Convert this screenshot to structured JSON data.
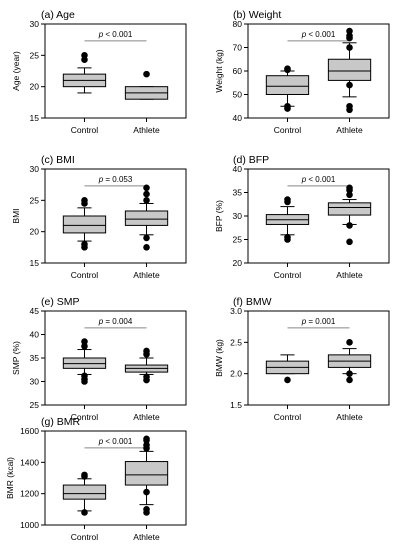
{
  "chart_data": [
    {
      "type": "box",
      "title": "(a) Age",
      "ylabel": "Age (year)",
      "categories": [
        "Control",
        "Athlete"
      ],
      "ylim": [
        15,
        30
      ],
      "yticks": [
        15,
        20,
        25,
        30
      ],
      "significance": {
        "p_symbol": "p",
        "text": " < 0.001"
      },
      "boxes": [
        {
          "q1": 20,
          "median": 21,
          "q3": 22,
          "whisker_low": 19,
          "whisker_high": 23,
          "outliers": [
            24.3,
            25
          ]
        },
        {
          "q1": 18,
          "median": 19,
          "q3": 20,
          "whisker_low": 18,
          "whisker_high": 20,
          "outliers": [
            22
          ]
        }
      ]
    },
    {
      "type": "box",
      "title": "(b) Weight",
      "ylabel": "Weight (kg)",
      "categories": [
        "Control",
        "Athlete"
      ],
      "ylim": [
        40,
        80
      ],
      "yticks": [
        40,
        50,
        60,
        70,
        80
      ],
      "significance": {
        "p_symbol": "p",
        "text": " < 0.001"
      },
      "boxes": [
        {
          "q1": 50,
          "median": 53.5,
          "q3": 58,
          "whisker_low": 45,
          "whisker_high": 60,
          "outliers": [
            45,
            44,
            60.5,
            61
          ]
        },
        {
          "q1": 56,
          "median": 60,
          "q3": 65,
          "whisker_low": 49,
          "whisker_high": 72,
          "outliers": [
            45,
            43.5,
            54,
            70,
            74,
            75,
            77
          ]
        }
      ]
    },
    {
      "type": "box",
      "title": "(c) BMI",
      "ylabel": "BMI",
      "categories": [
        "Control",
        "Athlete"
      ],
      "ylim": [
        15,
        30
      ],
      "yticks": [
        15,
        20,
        25,
        30
      ],
      "significance": {
        "p_symbol": "p",
        "text": " = 0.053"
      },
      "boxes": [
        {
          "q1": 19.8,
          "median": 21,
          "q3": 22.5,
          "whisker_low": 18.5,
          "whisker_high": 23.8,
          "outliers": [
            18,
            17.5,
            24.5,
            25
          ]
        },
        {
          "q1": 21,
          "median": 22,
          "q3": 23.3,
          "whisker_low": 19.5,
          "whisker_high": 24.5,
          "outliers": [
            19,
            17.5,
            25,
            26,
            27
          ]
        }
      ]
    },
    {
      "type": "box",
      "title": "(d) BFP",
      "ylabel": "BFP (%)",
      "categories": [
        "Control",
        "Athlete"
      ],
      "ylim": [
        20,
        40
      ],
      "yticks": [
        20,
        25,
        30,
        35,
        40
      ],
      "significance": {
        "p_symbol": "p",
        "text": " < 0.001"
      },
      "boxes": [
        {
          "q1": 28.2,
          "median": 29.2,
          "q3": 30.3,
          "whisker_low": 26,
          "whisker_high": 32,
          "outliers": [
            25.5,
            25,
            33,
            33.5
          ]
        },
        {
          "q1": 30.2,
          "median": 31.8,
          "q3": 32.8,
          "whisker_low": 28.2,
          "whisker_high": 33.5,
          "outliers": [
            28,
            24.5,
            34.5,
            35.5,
            36
          ]
        }
      ]
    },
    {
      "type": "box",
      "title": "(e) SMP",
      "ylabel": "SMP (%)",
      "categories": [
        "Control",
        "Athlete"
      ],
      "ylim": [
        25,
        45
      ],
      "yticks": [
        25,
        30,
        35,
        40,
        45
      ],
      "significance": {
        "p_symbol": "p",
        "text": " = 0.004"
      },
      "boxes": [
        {
          "q1": 32.8,
          "median": 33.8,
          "q3": 35,
          "whisker_low": 31.5,
          "whisker_high": 36.8,
          "outliers": [
            31.2,
            30.5,
            30,
            37.5,
            38.5
          ]
        },
        {
          "q1": 32,
          "median": 32.8,
          "q3": 33.5,
          "whisker_low": 31.5,
          "whisker_high": 35,
          "outliers": [
            31,
            30.3,
            35.8,
            36.5
          ]
        }
      ]
    },
    {
      "type": "box",
      "title": "(f) BMW",
      "ylabel": "BMW (kg)",
      "categories": [
        "Control",
        "Athlete"
      ],
      "ylim": [
        1.5,
        3.0
      ],
      "yticks": [
        1.5,
        2.0,
        2.5,
        3.0
      ],
      "significance": {
        "p_symbol": "p",
        "text": " = 0.001"
      },
      "boxes": [
        {
          "q1": 2.0,
          "median": 2.1,
          "q3": 2.2,
          "whisker_low": 2.0,
          "whisker_high": 2.3,
          "outliers": [
            1.9
          ]
        },
        {
          "q1": 2.1,
          "median": 2.2,
          "q3": 2.3,
          "whisker_low": 2.0,
          "whisker_high": 2.4,
          "outliers": [
            2.0,
            1.9,
            2.5
          ]
        }
      ]
    },
    {
      "type": "box",
      "title": "(g) BMR",
      "ylabel": "BMR (kcal)",
      "categories": [
        "Control",
        "Athlete"
      ],
      "ylim": [
        1000,
        1600
      ],
      "yticks": [
        1000,
        1200,
        1400,
        1600
      ],
      "significance": {
        "p_symbol": "p",
        "text": " < 0.001"
      },
      "boxes": [
        {
          "q1": 1165,
          "median": 1200,
          "q3": 1255,
          "whisker_low": 1090,
          "whisker_high": 1295,
          "outliers": [
            1080,
            1310,
            1320
          ]
        },
        {
          "q1": 1255,
          "median": 1320,
          "q3": 1405,
          "whisker_low": 1130,
          "whisker_high": 1470,
          "outliers": [
            1100,
            1080,
            1210,
            1490,
            1510,
            1540,
            1550
          ]
        }
      ]
    }
  ]
}
